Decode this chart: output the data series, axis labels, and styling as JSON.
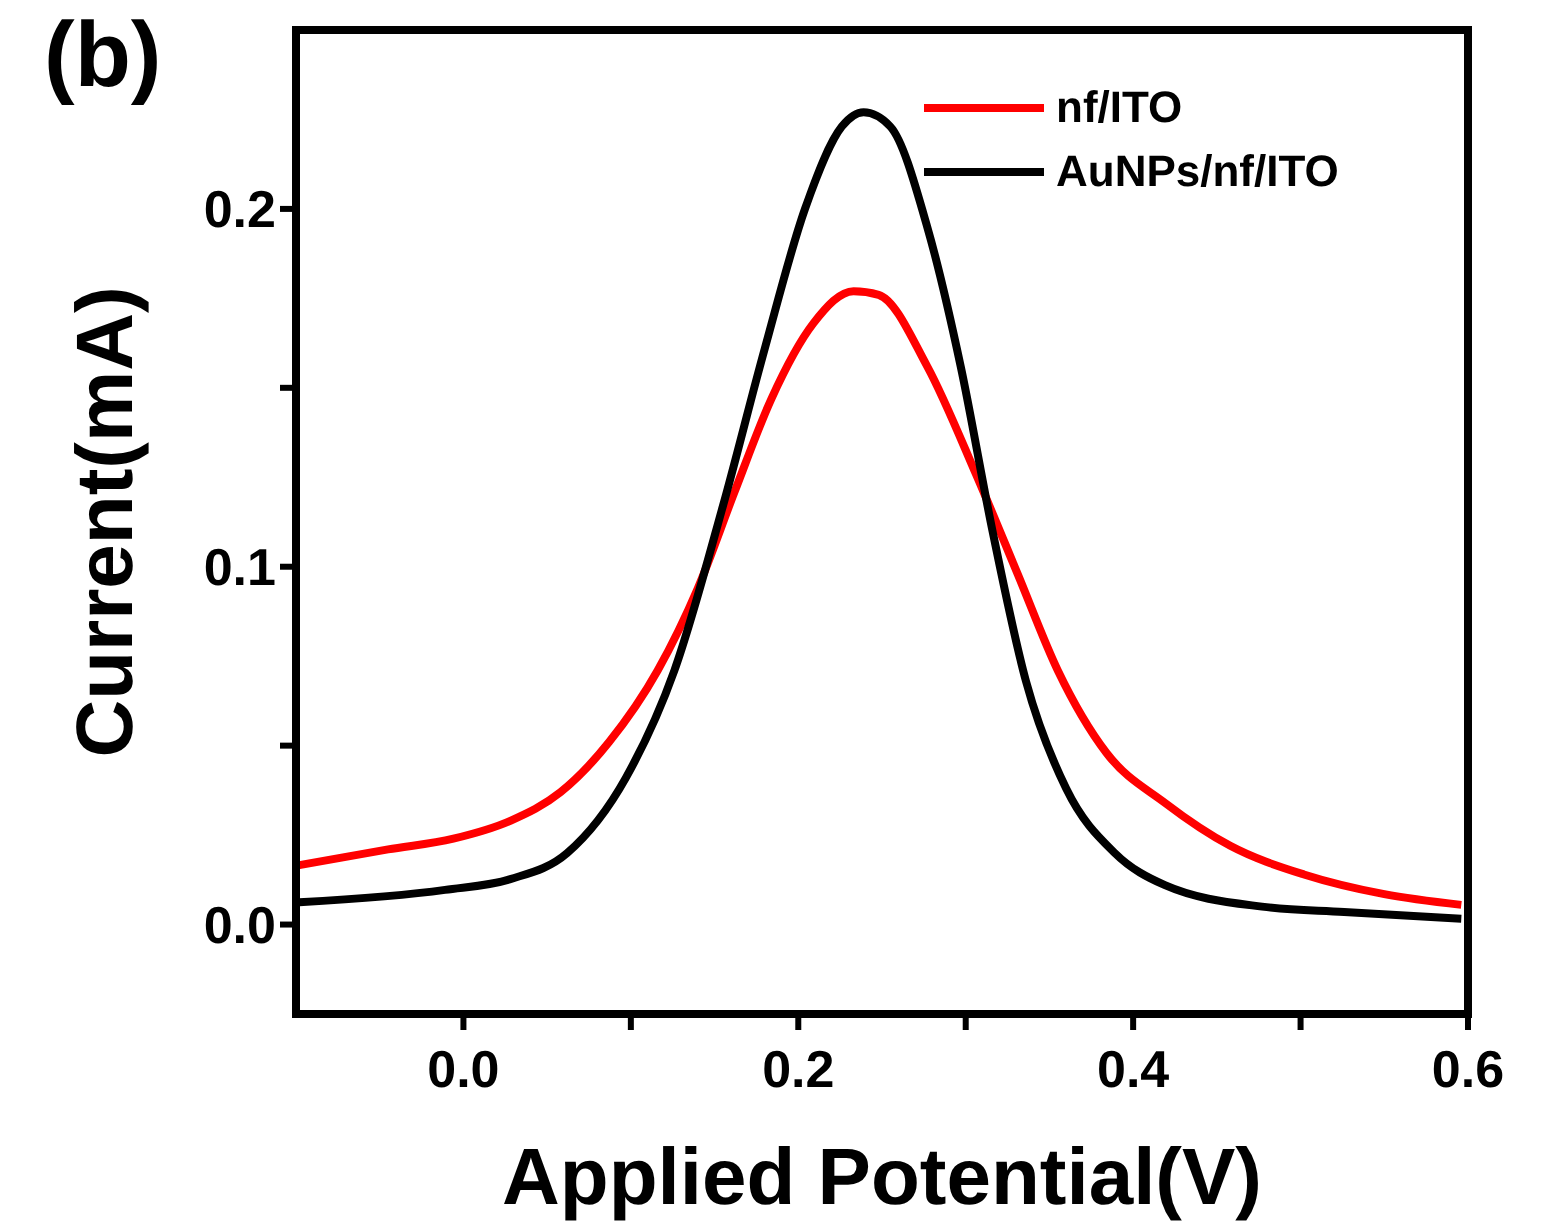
{
  "chart_data": {
    "type": "line",
    "xlabel": "Applied Potential(V)",
    "ylabel": "Current(mA)",
    "annotations": [
      "(b)"
    ],
    "xlim": [
      -0.1,
      0.6
    ],
    "xticks": [
      {
        "value": 0,
        "label": "0.0"
      },
      {
        "value": 0.1,
        "label": null
      },
      0.2,
      {
        "value": 0.3,
        "label": null
      },
      0.4,
      {
        "value": 0.5,
        "label": null
      },
      0.6
    ],
    "ylim": [
      -0.025,
      0.25
    ],
    "yticks": [
      {
        "value": 0,
        "label": "0.0"
      },
      {
        "value": 0.05,
        "label": null
      },
      0.1,
      {
        "value": 0.15,
        "label": null
      },
      0.2
    ],
    "grid": false,
    "legend": "top right",
    "marker": "none",
    "line_style": "solid",
    "series": [
      {
        "name": "nf/ITO",
        "color": "#ff0000",
        "x": [
          -0.098,
          -0.045,
          -0.006,
          0.028,
          0.058,
          0.087,
          0.116,
          0.14,
          0.162,
          0.184,
          0.209,
          0.233,
          0.248,
          0.277,
          0.306,
          0.331,
          0.355,
          0.384,
          0.419,
          0.458,
          0.502,
          0.55,
          0.596
        ],
        "values": [
          0.0166,
          0.021,
          0.024,
          0.029,
          0.037,
          0.051,
          0.071,
          0.094,
          0.121,
          0.147,
          0.168,
          0.177,
          0.176,
          0.156,
          0.126,
          0.098,
          0.071,
          0.048,
          0.034,
          0.022,
          0.014,
          0.0085,
          0.0055
        ]
      },
      {
        "name": "AuNPs/nf/ITO",
        "color": "#000000",
        "x": [
          -0.098,
          -0.011,
          0.028,
          0.062,
          0.097,
          0.126,
          0.155,
          0.18,
          0.204,
          0.226,
          0.239,
          0.255,
          0.277,
          0.297,
          0.316,
          0.336,
          0.36,
          0.389,
          0.419,
          0.477,
          0.526,
          0.596
        ],
        "values": [
          0.0062,
          0.0097,
          0.0127,
          0.02,
          0.041,
          0.071,
          0.117,
          0.161,
          0.2,
          0.223,
          0.227,
          0.223,
          0.195,
          0.156,
          0.11,
          0.068,
          0.038,
          0.02,
          0.011,
          0.005,
          0.0035,
          0.0016
        ]
      }
    ]
  }
}
